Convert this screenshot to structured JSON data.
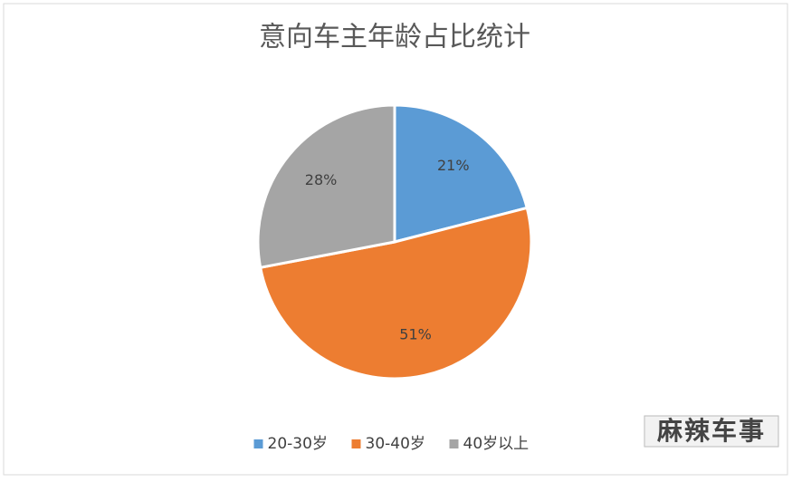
{
  "chart_data": {
    "type": "pie",
    "title": "意向车主年龄占比统计",
    "categories": [
      "20-30岁",
      "30-40岁",
      "40岁以上"
    ],
    "values": [
      21,
      51,
      28
    ],
    "value_labels": [
      "21%",
      "51%",
      "28%"
    ],
    "colors": [
      "#5b9bd5",
      "#ed7d31",
      "#a5a5a5"
    ],
    "legend": "bottom"
  },
  "watermark": "麻辣车事"
}
